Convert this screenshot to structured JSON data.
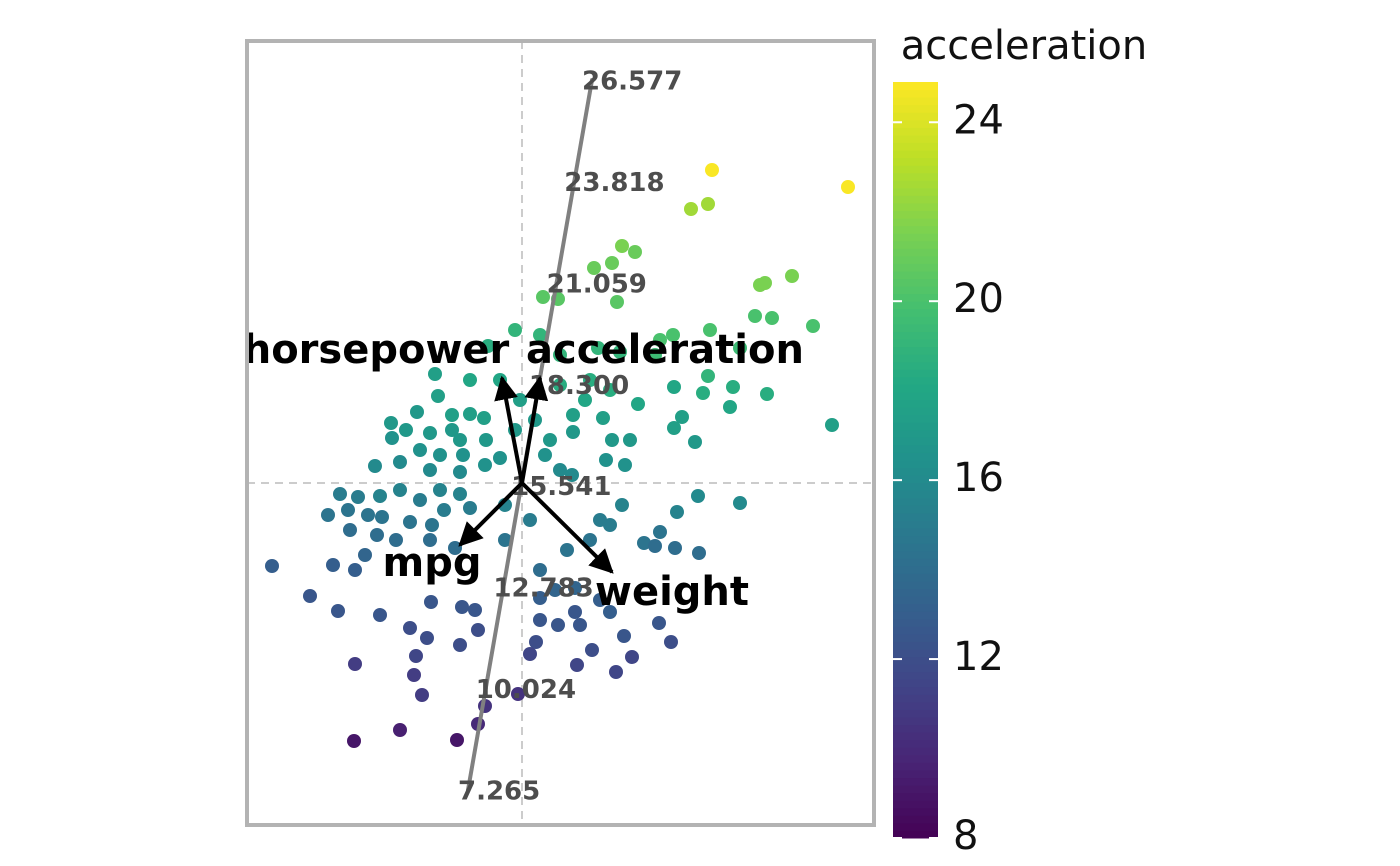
{
  "chart_data": {
    "type": "biplot",
    "xlim": [
      -2.75,
      3.52
    ],
    "ylim": [
      -3.42,
      4.42
    ],
    "colorbar": {
      "title": "acceleration",
      "colormap": "viridis",
      "lim": [
        8,
        24.9
      ],
      "ticks": [
        8,
        12,
        16,
        20,
        24
      ]
    },
    "points": {
      "x": [
        1.9,
        3.26,
        1.69,
        1.86,
        1.0,
        1.13,
        0.72,
        0.9,
        0.21,
        0.36,
        0.95,
        2.38,
        2.43,
        2.7,
        2.33,
        2.5,
        2.91,
        1.88,
        1.38,
        1.51,
        2.18,
        -0.07,
        -0.34,
        0.18,
        0.38,
        0.76,
        0.98,
        1.33,
        1.86,
        2.11,
        2.45,
        2.08,
        1.81,
        1.52,
        1.16,
        1.6,
        1.52,
        1.73,
        3.1,
        2.18,
        1.76,
        1.55,
        -0.87,
        -0.84,
        -1.05,
        -1.31,
        -1.16,
        -0.92,
        -0.7,
        -0.52,
        -0.38,
        -0.62,
        -0.36,
        -1.3,
        -1.02,
        -0.82,
        -0.59,
        -0.22,
        0.23,
        0.51,
        0.51,
        0.63,
        0.81,
        0.9,
        1.08,
        1.03,
        0.84,
        0.5,
        -1.47,
        -1.22,
        -0.92,
        -0.62,
        -0.37,
        -1.82,
        -1.64,
        -1.42,
        -1.22,
        -1.02,
        -0.82,
        -0.62,
        -1.94,
        -1.74,
        -1.54,
        -1.4,
        -1.12,
        -0.9,
        -0.78,
        -0.52,
        -1.72,
        -1.45,
        -1.26,
        -0.92,
        -0.67,
        -1.57,
        -2.5,
        -1.89,
        -1.67,
        -2.12,
        -1.84,
        -1.42,
        -0.91,
        -0.6,
        -0.47,
        -1.12,
        -0.95,
        -0.62,
        -0.44,
        -1.06,
        -1.67,
        -1.08,
        -1.0,
        -0.37,
        -0.04,
        -0.44,
        -1.22,
        -1.68,
        -0.65,
        0.45,
        0.68,
        0.88,
        1.0,
        0.78,
        1.22,
        1.38,
        1.53,
        1.77,
        1.33,
        0.18,
        0.33,
        0.53,
        0.78,
        0.88,
        0.18,
        0.53,
        0.18,
        0.36,
        0.58,
        1.02,
        1.37,
        1.49,
        0.14,
        0.7,
        1.1,
        0.55,
        0.94,
        0.08,
        -0.22,
        -0.02,
        0.13,
        0.28,
        -0.07,
        0.38,
        -0.17,
        0.08,
        -0.17,
        0.68,
        0.88,
        0.38,
        -0.52,
        -0.7
      ],
      "y": [
        3.13,
        2.96,
        2.74,
        2.79,
        2.37,
        2.31,
        2.15,
        2.2,
        1.86,
        1.84,
        1.81,
        1.98,
        2.0,
        2.07,
        1.67,
        1.65,
        1.57,
        1.53,
        1.43,
        1.48,
        1.35,
        1.53,
        1.37,
        1.48,
        1.28,
        1.35,
        1.31,
        1.28,
        1.07,
        0.96,
        0.89,
        0.76,
        0.9,
        0.96,
        0.79,
        0.66,
        0.55,
        0.41,
        0.58,
        -0.2,
        -0.13,
        -0.29,
        1.09,
        0.87,
        0.71,
        0.6,
        0.53,
        0.5,
        0.53,
        0.69,
        0.65,
        0.43,
        0.43,
        0.45,
        0.33,
        0.28,
        0.28,
        0.25,
        0.28,
        0.68,
        0.51,
        0.83,
        0.65,
        0.43,
        0.43,
        0.18,
        0.23,
        0.08,
        0.17,
        0.21,
        0.13,
        0.11,
        0.18,
        -0.11,
        -0.14,
        -0.13,
        -0.07,
        -0.17,
        -0.07,
        -0.11,
        -0.32,
        -0.27,
        -0.32,
        -0.34,
        -0.39,
        -0.42,
        -0.27,
        -0.25,
        -0.47,
        -0.52,
        -0.57,
        -0.57,
        -0.65,
        -0.72,
        -0.83,
        -0.82,
        -0.87,
        -1.13,
        -1.28,
        -1.32,
        -1.19,
        -1.24,
        -1.27,
        -1.45,
        -1.55,
        -1.62,
        -1.47,
        -1.73,
        -1.81,
        -1.92,
        -2.12,
        -2.23,
        -2.11,
        -2.41,
        -2.47,
        -2.58,
        -2.57,
        -0.67,
        -0.57,
        -0.42,
        -0.22,
        -0.37,
        -0.6,
        -0.49,
        -0.65,
        -0.7,
        -0.63,
        -0.87,
        -1.07,
        -1.05,
        -1.17,
        -1.29,
        -1.15,
        -1.29,
        -1.37,
        -1.42,
        -1.42,
        -1.53,
        -1.4,
        -1.59,
        -1.59,
        -1.67,
        -1.74,
        -1.82,
        -1.89,
        -1.71,
        1.03,
        0.83,
        0.63,
        0.43,
        0.53,
        0.13,
        -0.22,
        -0.37,
        -0.57,
        1.03,
        0.93,
        0.98,
        1.03,
        0.68
      ],
      "acceleration": [
        24.8,
        24.8,
        22.5,
        22.5,
        21.5,
        21,
        21,
        21,
        20.5,
        20.5,
        20.5,
        21.5,
        21.5,
        21.5,
        20,
        20,
        20,
        20,
        20,
        20,
        19.5,
        19,
        18.5,
        19,
        19,
        19,
        19,
        19.5,
        19,
        18.5,
        18.5,
        18,
        18.5,
        18,
        18,
        17.5,
        17.5,
        17,
        17.5,
        16,
        16,
        15.5,
        17.5,
        17.5,
        17,
        17,
        17,
        17,
        17,
        17.5,
        17.5,
        17,
        17,
        16.5,
        16.5,
        16.5,
        16.5,
        16.5,
        16.5,
        17.5,
        17,
        18,
        17.5,
        17,
        17,
        16.5,
        16.5,
        16,
        16,
        16,
        16,
        16,
        16.5,
        15,
        15,
        15.5,
        15.5,
        15,
        15.5,
        15.5,
        14.5,
        14.5,
        14.5,
        14.5,
        14.5,
        14.5,
        15,
        15,
        14,
        14,
        14,
        14,
        14,
        13.5,
        13,
        13,
        13,
        12.5,
        12.5,
        12.5,
        12.5,
        12.5,
        12.5,
        12,
        12,
        12,
        12,
        11.5,
        11,
        11,
        11,
        10.5,
        10.5,
        10,
        9.5,
        9,
        9,
        14.5,
        14.5,
        15,
        15.5,
        15,
        14.5,
        14.5,
        14,
        14,
        14,
        14,
        13.5,
        13.5,
        13,
        13,
        13,
        12.5,
        12.5,
        12.5,
        12.5,
        12.5,
        12.5,
        12,
        12,
        12,
        11.5,
        11.5,
        11.5,
        11.5,
        18,
        17.5,
        17,
        17,
        17,
        16,
        15.5,
        15,
        14.5,
        18.5,
        18.5,
        18.5,
        18,
        17.5
      ]
    },
    "calibrated_axis": {
      "from": [
        -0.54,
        -3.07
      ],
      "to": [
        0.7,
        4.03
      ],
      "ticks": [
        7.265,
        10.024,
        12.783,
        15.541,
        {
          "value": 18.3,
          "label": "18.300"
        },
        21.059,
        23.818,
        26.577
      ]
    },
    "loadings": [
      {
        "name": "horsepower",
        "x": -0.2,
        "y": 1.05
      },
      {
        "name": "acceleration",
        "x": 0.18,
        "y": 1.05
      },
      {
        "name": "mpg",
        "x": -0.62,
        "y": -0.62
      },
      {
        "name": "weight",
        "x": 0.9,
        "y": -0.89
      }
    ]
  }
}
